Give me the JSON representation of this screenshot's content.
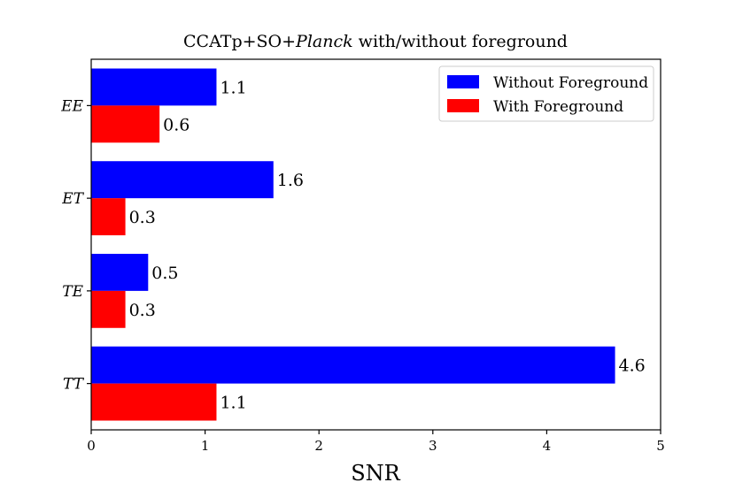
{
  "chart_data": {
    "type": "bar",
    "orientation": "horizontal",
    "title": {
      "prefix": "CCATp+SO+",
      "italic": "Planck",
      "suffix": " with/without foreground"
    },
    "xlabel": "SNR",
    "ylabel": "",
    "xlim": [
      0,
      5
    ],
    "xticks": [
      0,
      1,
      2,
      3,
      4,
      5
    ],
    "categories": [
      "TT",
      "TE",
      "ET",
      "EE"
    ],
    "series": [
      {
        "name": "Without Foreground",
        "color": "#0000ff",
        "values": [
          4.6,
          0.5,
          1.6,
          1.1
        ],
        "labels": [
          "4.6",
          "0.5",
          "1.6",
          "1.1"
        ]
      },
      {
        "name": "With Foreground",
        "color": "#ff0000",
        "values": [
          1.1,
          0.3,
          0.3,
          0.6
        ],
        "labels": [
          "1.1",
          "0.3",
          "0.3",
          "0.6"
        ]
      }
    ],
    "legend_position": "top-right",
    "grid": false
  }
}
